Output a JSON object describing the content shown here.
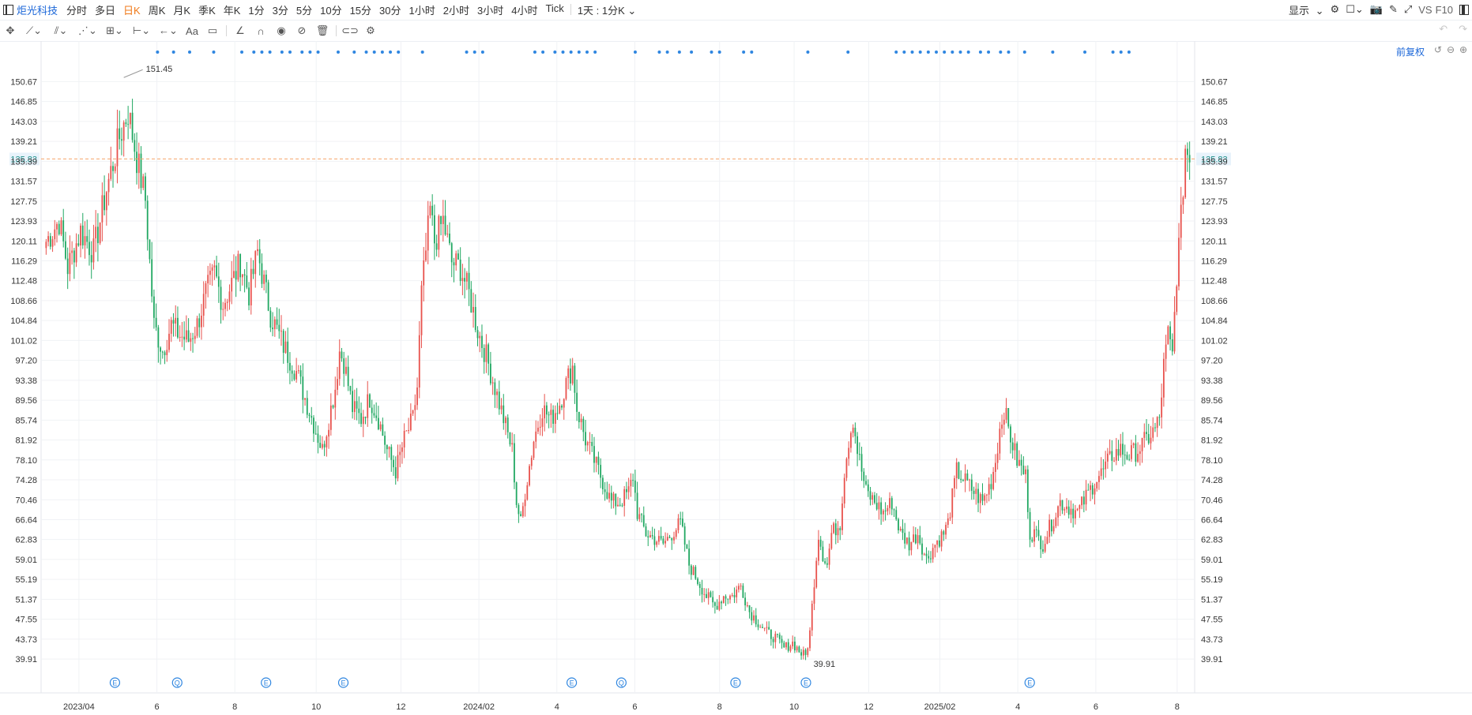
{
  "header": {
    "stock_name": "炬光科技",
    "periods": [
      "分时",
      "多日",
      "日K",
      "周K",
      "月K",
      "季K",
      "年K",
      "1分",
      "3分",
      "5分",
      "10分",
      "15分",
      "30分",
      "1小时",
      "2小时",
      "3小时",
      "4小时",
      "Tick"
    ],
    "active_period": "日K",
    "interval_select": "1天 : 1分K",
    "display_label": "显示",
    "vs_label": "VS",
    "f10_label": "F10"
  },
  "toolbar": {
    "tools": [
      "move-icon",
      "line-icon",
      "channel-icon",
      "polyline-icon",
      "pattern-icon",
      "range-icon",
      "arrow-icon",
      "text-icon",
      "comment-icon",
      "angle-icon",
      "magnet-icon",
      "eye-icon",
      "hide-icon",
      "trash-icon",
      "link-icon",
      "settings-icon"
    ],
    "text_tool_label": "Aa"
  },
  "adjust_label": "前复权",
  "colors": {
    "up": "#e8524d",
    "down": "#21a862",
    "current_price": "#f5a46a",
    "axis_text": "#333333",
    "marker_blue": "#2f86e0"
  },
  "chart_data": {
    "type": "candlestick",
    "title": "",
    "y_ticks": [
      "150.67",
      "146.85",
      "143.03",
      "139.21",
      "135.39",
      "131.57",
      "127.75",
      "123.93",
      "120.11",
      "116.29",
      "112.48",
      "108.66",
      "104.84",
      "101.02",
      "97.20",
      "93.38",
      "89.56",
      "85.74",
      "81.92",
      "78.10",
      "74.28",
      "70.46",
      "66.64",
      "62.83",
      "59.01",
      "55.19",
      "51.37",
      "47.55",
      "43.73",
      "39.91"
    ],
    "ylim": [
      37.5,
      153.0
    ],
    "x_labels": [
      "2023/04",
      "6",
      "8",
      "10",
      "12",
      "2024/02",
      "4",
      "6",
      "8",
      "10",
      "12",
      "2025/02",
      "4",
      "6",
      "8"
    ],
    "current_price": "135.83",
    "high_annotation": "151.45",
    "low_annotation": "39.91",
    "event_markers": [
      "E",
      "Q",
      "E",
      "E",
      "E",
      "Q",
      "E",
      "E",
      "E"
    ],
    "anchors": [
      [
        0,
        120
      ],
      [
        6,
        124
      ],
      [
        10,
        115
      ],
      [
        16,
        122
      ],
      [
        22,
        118
      ],
      [
        28,
        130
      ],
      [
        34,
        140
      ],
      [
        38,
        145
      ],
      [
        42,
        136
      ],
      [
        46,
        128
      ],
      [
        50,
        104
      ],
      [
        54,
        99
      ],
      [
        58,
        104
      ],
      [
        62,
        102
      ],
      [
        66,
        101
      ],
      [
        70,
        104
      ],
      [
        74,
        110
      ],
      [
        78,
        114
      ],
      [
        82,
        108
      ],
      [
        86,
        112
      ],
      [
        90,
        116
      ],
      [
        94,
        110
      ],
      [
        98,
        118
      ],
      [
        100,
        114
      ],
      [
        104,
        106
      ],
      [
        110,
        100
      ],
      [
        116,
        95
      ],
      [
        120,
        90
      ],
      [
        124,
        85
      ],
      [
        128,
        80
      ],
      [
        130,
        84
      ],
      [
        134,
        92
      ],
      [
        136,
        99
      ],
      [
        138,
        97
      ],
      [
        142,
        88
      ],
      [
        146,
        86
      ],
      [
        150,
        90
      ],
      [
        154,
        86
      ],
      [
        158,
        80
      ],
      [
        162,
        76
      ],
      [
        166,
        82
      ],
      [
        170,
        86
      ],
      [
        172,
        92
      ],
      [
        174,
        110
      ],
      [
        176,
        118
      ],
      [
        178,
        126
      ],
      [
        180,
        120
      ],
      [
        184,
        124
      ],
      [
        188,
        116
      ],
      [
        192,
        115
      ],
      [
        196,
        110
      ],
      [
        200,
        103
      ],
      [
        204,
        98
      ],
      [
        208,
        92
      ],
      [
        212,
        86
      ],
      [
        216,
        80
      ],
      [
        218,
        70
      ],
      [
        220,
        66
      ],
      [
        222,
        72
      ],
      [
        226,
        82
      ],
      [
        230,
        88
      ],
      [
        234,
        86
      ],
      [
        238,
        89
      ],
      [
        242,
        94
      ],
      [
        244,
        96
      ],
      [
        246,
        88
      ],
      [
        250,
        82
      ],
      [
        254,
        78
      ],
      [
        258,
        74
      ],
      [
        262,
        70
      ],
      [
        266,
        70
      ],
      [
        270,
        72
      ],
      [
        272,
        75
      ],
      [
        274,
        68
      ],
      [
        278,
        64
      ],
      [
        282,
        63
      ],
      [
        286,
        62
      ],
      [
        290,
        64
      ],
      [
        294,
        66
      ],
      [
        298,
        58
      ],
      [
        302,
        55
      ],
      [
        306,
        52
      ],
      [
        310,
        50
      ],
      [
        314,
        52
      ],
      [
        318,
        52
      ],
      [
        322,
        54
      ],
      [
        326,
        49
      ],
      [
        330,
        47
      ],
      [
        334,
        45
      ],
      [
        338,
        44
      ],
      [
        342,
        42
      ],
      [
        346,
        43
      ],
      [
        350,
        41
      ],
      [
        352,
        40.5
      ],
      [
        354,
        45
      ],
      [
        356,
        55
      ],
      [
        358,
        64
      ],
      [
        360,
        60
      ],
      [
        362,
        58
      ],
      [
        364,
        64
      ],
      [
        368,
        66
      ],
      [
        370,
        76
      ],
      [
        372,
        82
      ],
      [
        374,
        86
      ],
      [
        376,
        80
      ],
      [
        380,
        72
      ],
      [
        384,
        70
      ],
      [
        388,
        68
      ],
      [
        392,
        70
      ],
      [
        396,
        64
      ],
      [
        400,
        62
      ],
      [
        404,
        64
      ],
      [
        408,
        59
      ],
      [
        412,
        62
      ],
      [
        416,
        64
      ],
      [
        418,
        66
      ],
      [
        422,
        76
      ],
      [
        426,
        74
      ],
      [
        430,
        72
      ],
      [
        434,
        70
      ],
      [
        438,
        74
      ],
      [
        440,
        78
      ],
      [
        442,
        84
      ],
      [
        444,
        88
      ],
      [
        446,
        84
      ],
      [
        450,
        78
      ],
      [
        454,
        75
      ],
      [
        456,
        64
      ],
      [
        458,
        64
      ],
      [
        462,
        62
      ],
      [
        466,
        66
      ],
      [
        470,
        70
      ],
      [
        474,
        69
      ],
      [
        478,
        68
      ],
      [
        482,
        71
      ],
      [
        486,
        74
      ],
      [
        490,
        76
      ],
      [
        494,
        79
      ],
      [
        498,
        80
      ],
      [
        502,
        79
      ],
      [
        506,
        80
      ],
      [
        510,
        82
      ],
      [
        514,
        84
      ],
      [
        516,
        86
      ],
      [
        518,
        96
      ],
      [
        520,
        102
      ],
      [
        522,
        98
      ],
      [
        524,
        114
      ],
      [
        526,
        124
      ],
      [
        528,
        138
      ],
      [
        530,
        136
      ]
    ],
    "markers_dots_x_fraction": [
      0.058,
      0.066,
      0.074,
      0.086,
      0.1,
      0.106,
      0.11,
      0.114,
      0.12,
      0.124,
      0.13,
      0.134,
      0.138,
      0.148,
      0.156,
      0.162,
      0.166,
      0.17,
      0.174,
      0.178,
      0.19,
      0.212,
      0.216,
      0.22,
      0.246,
      0.25,
      0.256,
      0.26,
      0.264,
      0.268,
      0.272,
      0.276,
      0.296,
      0.308,
      0.312,
      0.318,
      0.324,
      0.334,
      0.338,
      0.35,
      0.354,
      0.382,
      0.402,
      0.426,
      0.43,
      0.434,
      0.438,
      0.442,
      0.446,
      0.45,
      0.454,
      0.458,
      0.462,
      0.468,
      0.472,
      0.478,
      0.482,
      0.49,
      0.504,
      0.52,
      0.534,
      0.538,
      0.542
    ]
  }
}
